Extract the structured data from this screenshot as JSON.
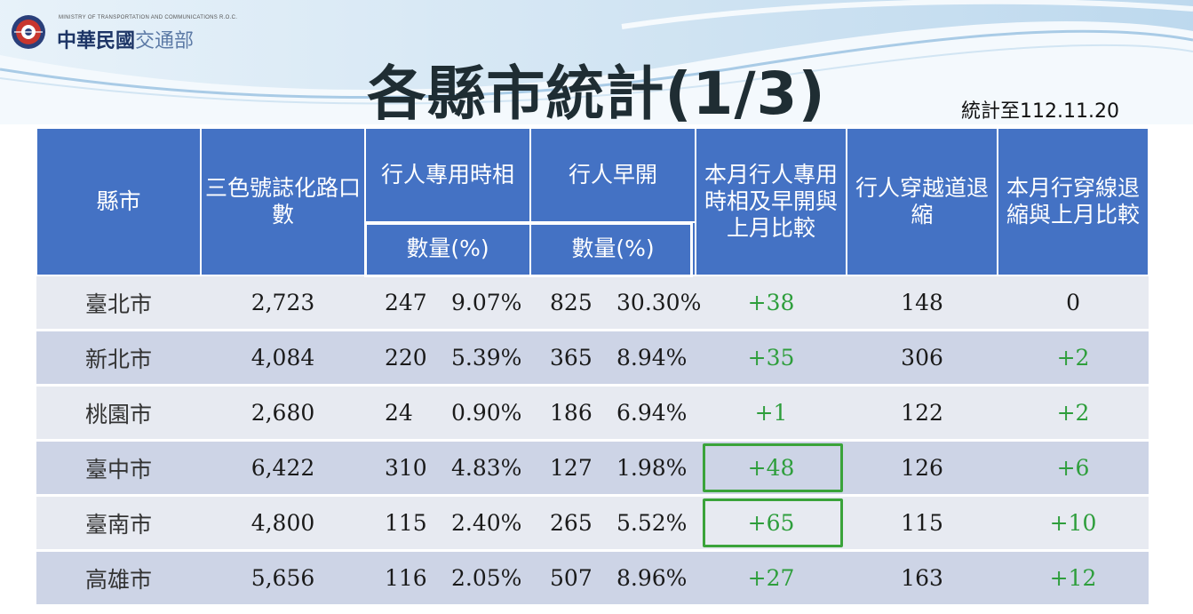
{
  "header": {
    "ministry_en": "MINISTRY OF TRANSPORTATION AND COMMUNICATIONS R.O.C.",
    "ministry_zh_bold": "中華民國",
    "ministry_zh_light": "交通部",
    "logo_icon": "ministry-seal-icon"
  },
  "slide": {
    "title": "各縣市統計(1/3)",
    "as_of": "統計至112.11.20"
  },
  "table": {
    "headers": {
      "city": "縣市",
      "intersections": "三色號誌化路口數",
      "exclusive_phase": "行人專用時相",
      "early_start": "行人早開",
      "monthly_change": "本月行人專用時相及早開與上月比較",
      "crosswalk_setback": "行人穿越道退縮",
      "setback_change": "本月行穿線退縮與上月比較",
      "sub_exclusive": "數量(%)",
      "sub_early": "數量(%)"
    },
    "rows": [
      {
        "city": "臺北市",
        "intersections": "2,723",
        "excl_n": "247",
        "excl_p": "9.07%",
        "early_n": "825",
        "early_p": "30.30%",
        "change": "+38",
        "setback": "148",
        "setback_change": "0"
      },
      {
        "city": "新北市",
        "intersections": "4,084",
        "excl_n": "220",
        "excl_p": "5.39%",
        "early_n": "365",
        "early_p": "8.94%",
        "change": "+35",
        "setback": "306",
        "setback_change": "+2"
      },
      {
        "city": "桃園市",
        "intersections": "2,680",
        "excl_n": "24",
        "excl_p": "0.90%",
        "early_n": "186",
        "early_p": "6.94%",
        "change": "+1",
        "setback": "122",
        "setback_change": "+2"
      },
      {
        "city": "臺中市",
        "intersections": "6,422",
        "excl_n": "310",
        "excl_p": "4.83%",
        "early_n": "127",
        "early_p": "1.98%",
        "change": "+48",
        "setback": "126",
        "setback_change": "+6"
      },
      {
        "city": "臺南市",
        "intersections": "4,800",
        "excl_n": "115",
        "excl_p": "2.40%",
        "early_n": "265",
        "early_p": "5.52%",
        "change": "+65",
        "setback": "115",
        "setback_change": "+10"
      },
      {
        "city": "高雄市",
        "intersections": "5,656",
        "excl_n": "116",
        "excl_p": "2.05%",
        "early_n": "507",
        "early_p": "8.96%",
        "change": "+27",
        "setback": "163",
        "setback_change": "+12"
      }
    ],
    "highlight_color": "#3aa33a",
    "positive_color": "#2e9e3c",
    "header_color": "#4472c4"
  }
}
